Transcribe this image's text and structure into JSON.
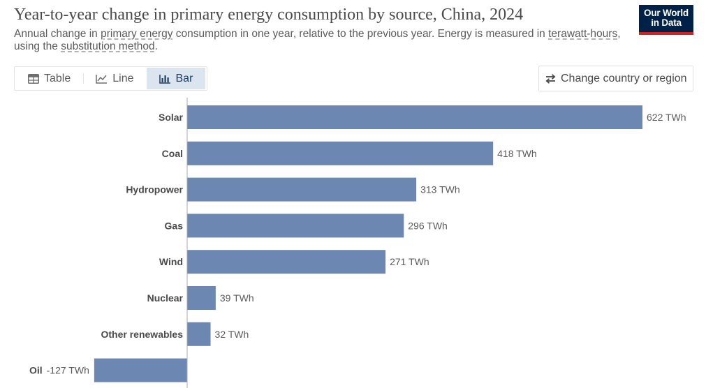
{
  "header": {
    "title": "Year-to-year change in primary energy consumption by source, China, 2024",
    "subtitle": {
      "p1": "Annual change in ",
      "link1": "primary energy",
      "p2": " consumption in one year, relative to the previous year. Energy is measured in ",
      "link2": "terawatt-hours",
      "p3": ", using the ",
      "link3": "substitution method",
      "p4": "."
    },
    "logo": {
      "line1": "Our World",
      "line2": "in Data"
    }
  },
  "tabs": [
    {
      "label": "Table",
      "icon": "table-icon",
      "active": false
    },
    {
      "label": "Line",
      "icon": "line-chart-icon",
      "active": false
    },
    {
      "label": "Bar",
      "icon": "bar-chart-icon",
      "active": true
    }
  ],
  "country_button": {
    "label": "Change country or region",
    "icon": "swap-arrows-icon"
  },
  "colors": {
    "bar": "#6c87b1",
    "title": "#4a4a4a",
    "logo_bg": "#002147",
    "logo_accent": "#ce261e"
  },
  "chart_data": {
    "type": "bar",
    "orientation": "horizontal",
    "title": "Year-to-year change in primary energy consumption by source, China, 2024",
    "unit": "TWh",
    "categories": [
      "Solar",
      "Coal",
      "Hydropower",
      "Gas",
      "Wind",
      "Nuclear",
      "Other renewables",
      "Oil"
    ],
    "values": [
      622,
      418,
      313,
      296,
      271,
      39,
      32,
      -127
    ],
    "value_labels": [
      "622 TWh",
      "418 TWh",
      "313 TWh",
      "296 TWh",
      "271 TWh",
      "39 TWh",
      "32 TWh",
      "-127 TWh"
    ],
    "xlim": [
      -238,
      622
    ],
    "grid": false,
    "legend": "none"
  }
}
